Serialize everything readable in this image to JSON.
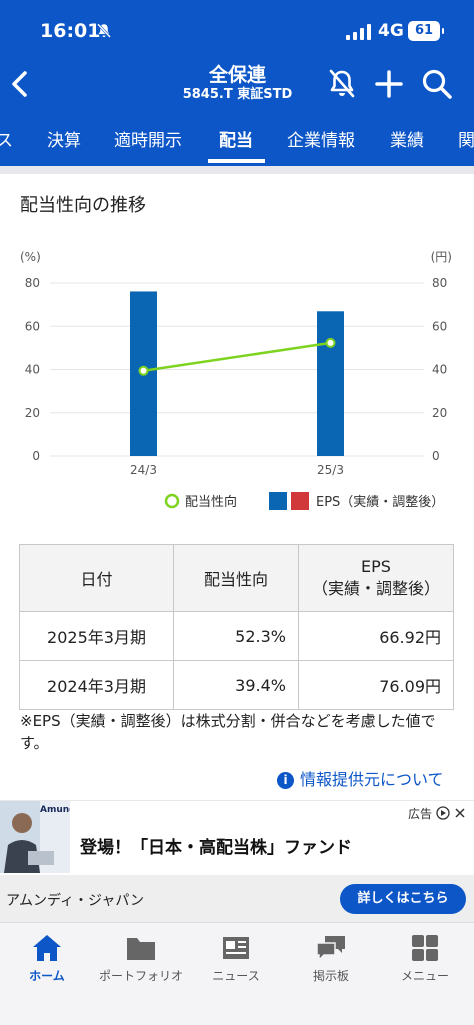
{
  "status_bar": {
    "time": "16:01",
    "network": "4G",
    "battery": "61"
  },
  "header": {
    "title": "全保連",
    "subtitle": "5845.T 東証STD"
  },
  "tabs": [
    "ス",
    "決算",
    "適時開示",
    "配当",
    "企業情報",
    "業績",
    "関"
  ],
  "active_tab": "配当",
  "section_title": "配当性向の推移",
  "chart_data": {
    "type": "bar+line",
    "categories": [
      "24/3",
      "25/3"
    ],
    "series": [
      {
        "name": "EPS（実績・調整後）",
        "type": "bar",
        "axis": "right",
        "values": [
          76.09,
          66.92
        ],
        "color": "#0a66b2"
      },
      {
        "name": "配当性向",
        "type": "line",
        "axis": "left",
        "values": [
          39.4,
          52.3
        ],
        "color": "#7ed321"
      }
    ],
    "left_unit": "(%)",
    "right_unit": "(円)",
    "ylim": [
      0,
      80
    ],
    "y_ticks": [
      "0",
      "20",
      "40",
      "60",
      "80"
    ],
    "legend": [
      "配当性向",
      "EPS（実績・調整後）"
    ],
    "legend_position": "bottom"
  },
  "table": {
    "headers": [
      "日付",
      "配当性向",
      "EPS",
      "（実績・調整後）"
    ],
    "rows": [
      [
        "2025年3月期",
        "52.3%",
        "66.92円"
      ],
      [
        "2024年3月期",
        "39.4%",
        "76.09円"
      ]
    ]
  },
  "note": "※EPS（実績・調整後）は株式分割・併合などを考慮した値です。",
  "info_link": "情報提供元について",
  "ad": {
    "label": "広告",
    "brand": "Amundi",
    "headline": "登場！「日本・高配当株」ファンド",
    "advertiser": "アムンディ・ジャパン",
    "cta": "詳しくはこちら"
  },
  "nav": [
    {
      "label": "ホーム",
      "icon": "home-icon"
    },
    {
      "label": "ポートフォリオ",
      "icon": "folder-icon"
    },
    {
      "label": "ニュース",
      "icon": "news-icon"
    },
    {
      "label": "掲示板",
      "icon": "chat-icon"
    },
    {
      "label": "メニュー",
      "icon": "grid-icon"
    }
  ],
  "colors": {
    "brand": "#0d56c8",
    "bar": "#0a66b2",
    "line": "#7ed321",
    "eps_alt": "#d0383a"
  }
}
